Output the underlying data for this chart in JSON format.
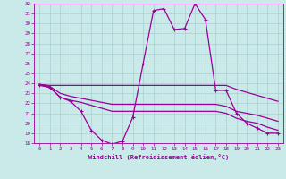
{
  "xlabel": "Windchill (Refroidissement éolien,°C)",
  "background_color": "#caeaea",
  "line_color": "#990099",
  "grid_color": "#aacfcf",
  "xlim": [
    -0.5,
    23.5
  ],
  "ylim": [
    18,
    32
  ],
  "yticks": [
    18,
    19,
    20,
    21,
    22,
    23,
    24,
    25,
    26,
    27,
    28,
    29,
    30,
    31,
    32
  ],
  "xticks": [
    0,
    1,
    2,
    3,
    4,
    5,
    6,
    7,
    8,
    9,
    10,
    11,
    12,
    13,
    14,
    15,
    16,
    17,
    18,
    19,
    20,
    21,
    22,
    23
  ],
  "line_main": {
    "x": [
      0,
      1,
      2,
      3,
      4,
      5,
      6,
      7,
      8,
      9,
      10,
      11,
      12,
      13,
      14,
      15,
      16,
      17,
      18,
      19,
      20,
      21,
      22,
      23
    ],
    "y": [
      23.8,
      23.6,
      22.6,
      22.2,
      21.2,
      19.3,
      18.3,
      17.9,
      18.2,
      20.6,
      26.0,
      31.3,
      31.5,
      29.4,
      29.5,
      32.0,
      30.4,
      23.3,
      23.3,
      21.0,
      20.0,
      19.5,
      19.0,
      19.0
    ]
  },
  "line_upper": {
    "x": [
      0,
      1,
      2,
      3,
      4,
      5,
      6,
      7,
      8,
      9,
      10,
      11,
      12,
      13,
      14,
      15,
      16,
      17,
      18,
      19,
      20,
      21,
      22,
      23
    ],
    "y": [
      23.9,
      23.8,
      23.8,
      23.8,
      23.8,
      23.8,
      23.8,
      23.8,
      23.8,
      23.8,
      23.8,
      23.8,
      23.8,
      23.8,
      23.8,
      23.8,
      23.8,
      23.8,
      23.8,
      23.4,
      23.1,
      22.8,
      22.5,
      22.2
    ]
  },
  "line_mid": {
    "x": [
      0,
      1,
      2,
      3,
      4,
      5,
      6,
      7,
      8,
      9,
      10,
      11,
      12,
      13,
      14,
      15,
      16,
      17,
      18,
      19,
      20,
      21,
      22,
      23
    ],
    "y": [
      23.9,
      23.7,
      23.0,
      22.7,
      22.5,
      22.3,
      22.1,
      21.9,
      21.9,
      21.9,
      21.9,
      21.9,
      21.9,
      21.9,
      21.9,
      21.9,
      21.9,
      21.9,
      21.7,
      21.2,
      21.0,
      20.8,
      20.5,
      20.2
    ]
  },
  "line_lower": {
    "x": [
      0,
      1,
      2,
      3,
      4,
      5,
      6,
      7,
      8,
      9,
      10,
      11,
      12,
      13,
      14,
      15,
      16,
      17,
      18,
      19,
      20,
      21,
      22,
      23
    ],
    "y": [
      23.9,
      23.6,
      22.6,
      22.3,
      22.1,
      21.8,
      21.5,
      21.2,
      21.2,
      21.2,
      21.2,
      21.2,
      21.2,
      21.2,
      21.2,
      21.2,
      21.2,
      21.2,
      21.0,
      20.5,
      20.2,
      20.0,
      19.6,
      19.3
    ]
  }
}
